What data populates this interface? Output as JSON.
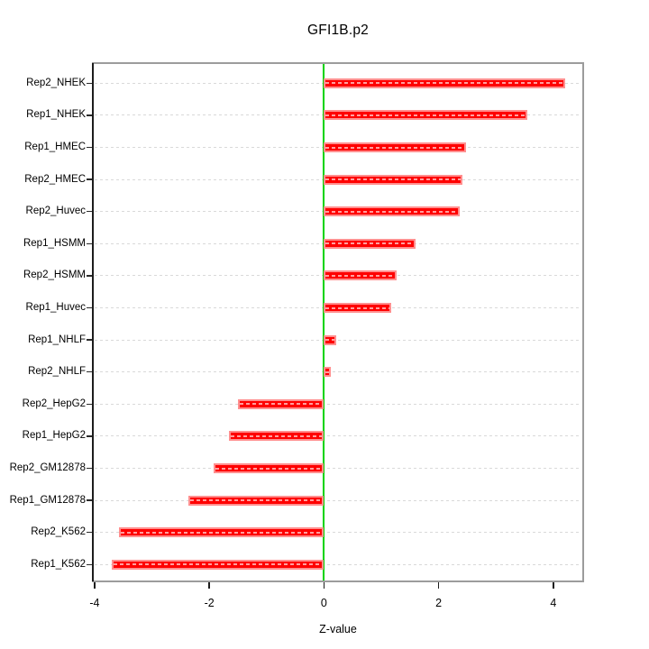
{
  "chart_data": {
    "type": "bar",
    "orientation": "horizontal",
    "title": "GFI1B.p2",
    "xlabel": "Z-value",
    "ylabel": "",
    "categories": [
      "Rep2_NHEK",
      "Rep1_NHEK",
      "Rep1_HMEC",
      "Rep2_HMEC",
      "Rep2_Huvec",
      "Rep1_HSMM",
      "Rep2_HSMM",
      "Rep1_Huvec",
      "Rep1_NHLF",
      "Rep2_NHLF",
      "Rep2_HepG2",
      "Rep1_HepG2",
      "Rep2_GM12878",
      "Rep1_GM12878",
      "Rep2_K562",
      "Rep1_K562"
    ],
    "values": [
      4.21,
      3.55,
      2.48,
      2.41,
      2.36,
      1.59,
      1.26,
      1.17,
      0.22,
      0.12,
      -1.5,
      -1.65,
      -1.93,
      -2.37,
      -3.58,
      -3.7
    ],
    "x_ticks": [
      -4,
      -2,
      0,
      2,
      4
    ],
    "xlim": [
      -4.03,
      4.52
    ],
    "zero_line_x": 0,
    "grid": "dashed-horizontal-per-category",
    "legend": "none",
    "colors": {
      "bar_fill": "#ff0000",
      "bar_edge": "#ff8f8f",
      "zero_line": "#00d300",
      "gridline": "#d9d9d9",
      "box": "#9c9c9c",
      "text": "#000000"
    }
  }
}
